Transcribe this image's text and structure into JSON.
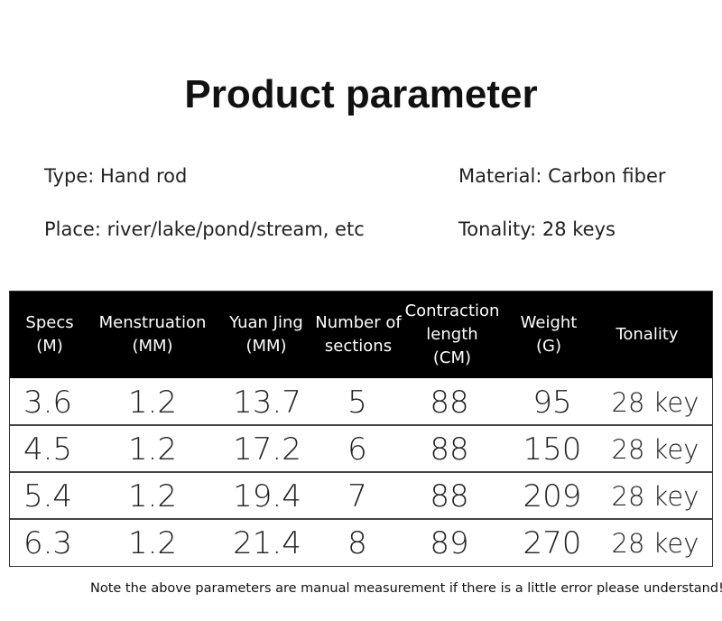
{
  "title": "Product parameter",
  "specs": [
    "Type: Hand rod",
    "Material: Carbon fiber",
    "Place: river/lake/pond/stream, etc",
    "Tonality: 28 keys"
  ],
  "table": {
    "header": [
      [
        "Specs",
        "(M)"
      ],
      [
        "Menstruation",
        "(MM)"
      ],
      [
        "Yuan Jing",
        "(MM)"
      ],
      [
        "Number of",
        "sections"
      ],
      [
        "Contraction",
        "length",
        "(CM)"
      ],
      [
        "Weight",
        "(G)"
      ],
      [
        "Tonality"
      ]
    ],
    "rows": [
      [
        "3.6",
        "1.2",
        "13.7",
        "5",
        "88",
        "95",
        "28 key"
      ],
      [
        "4.5",
        "1.2",
        "17.2",
        "6",
        "88",
        "150",
        "28 key"
      ],
      [
        "5.4",
        "1.2",
        "19.4",
        "7",
        "88",
        "209",
        "28 key"
      ],
      [
        "6.3",
        "1.2",
        "21.4",
        "8",
        "89",
        "270",
        "28 key"
      ]
    ]
  },
  "note": "Note the above parameters are manual measurement if there is a little error please understand!"
}
